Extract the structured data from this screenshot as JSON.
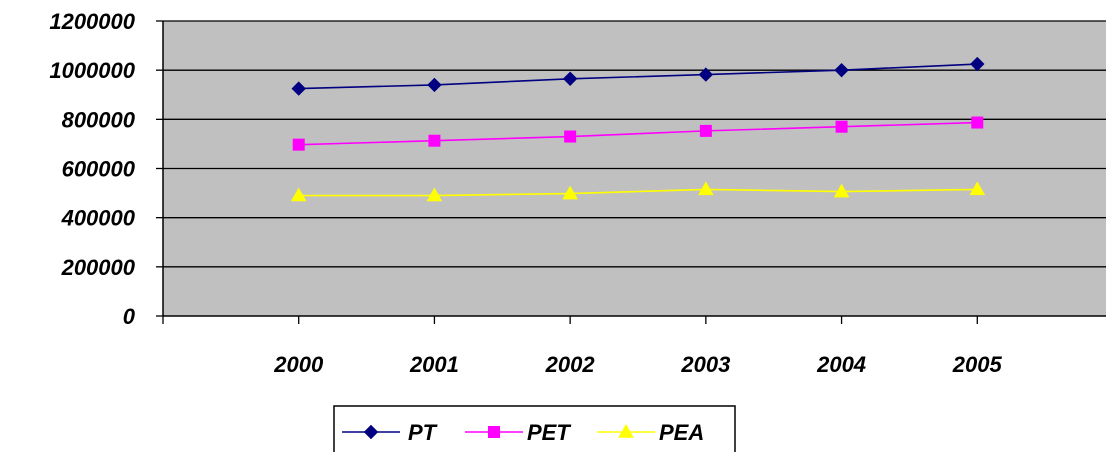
{
  "chart_data": {
    "type": "line",
    "title": "",
    "xlabel": "",
    "ylabel": "",
    "categories": [
      "2000",
      "2001",
      "2002",
      "2003",
      "2004",
      "2005"
    ],
    "ylim": [
      0,
      1200000
    ],
    "yticks": [
      "0",
      "200000",
      "400000",
      "600000",
      "800000",
      "1000000",
      "1200000"
    ],
    "grid": true,
    "plot_background": "#c0c0c0",
    "legend_position": "bottom",
    "series": [
      {
        "name": "PT",
        "color": "#000080",
        "marker": "diamond",
        "values": [
          925000,
          940000,
          965000,
          982000,
          1000000,
          1025000
        ]
      },
      {
        "name": "PET",
        "color": "#ff00ff",
        "marker": "square",
        "values": [
          697000,
          713000,
          730000,
          753000,
          770000,
          787000
        ]
      },
      {
        "name": "PEA",
        "color": "#ffff00",
        "marker": "triangle",
        "values": [
          490000,
          490000,
          498000,
          515000,
          506000,
          515000
        ]
      }
    ]
  }
}
